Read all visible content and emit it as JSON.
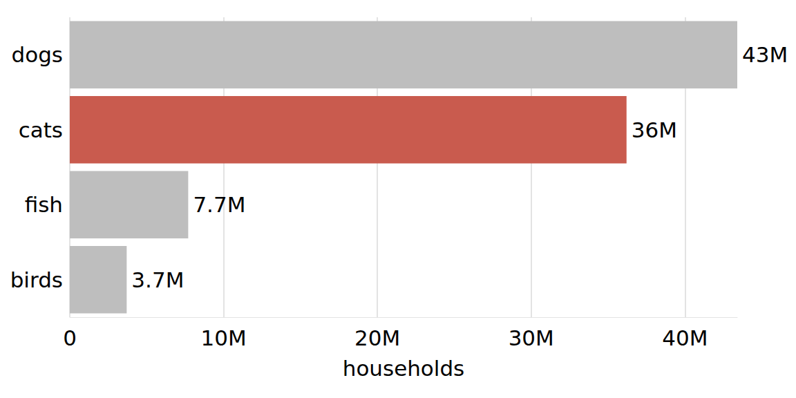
{
  "chart_data": {
    "type": "bar",
    "orientation": "horizontal",
    "categories": [
      "dogs",
      "cats",
      "fish",
      "birds"
    ],
    "values": [
      43400000,
      36200000,
      7700000,
      3700000
    ],
    "value_labels": [
      "43M",
      "36M",
      "7.7M",
      "3.7M"
    ],
    "colors": [
      "#bebebe",
      "#c95b4e",
      "#bebebe",
      "#bebebe"
    ],
    "x_label": "households",
    "xlim": [
      0,
      43400000
    ],
    "xticks": [
      0,
      {
        "value": 10000000,
        "label": "10M"
      },
      {
        "value": 20000000,
        "label": "20M"
      },
      {
        "value": 30000000,
        "label": "30M"
      },
      {
        "value": 40000000,
        "label": "40M"
      }
    ],
    "grid": true,
    "data_labels": true
  }
}
